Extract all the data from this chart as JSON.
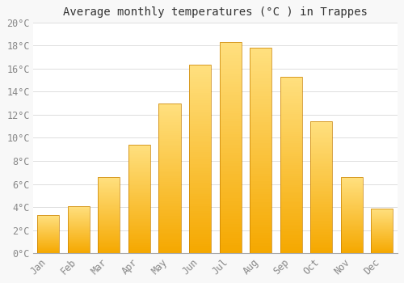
{
  "months": [
    "Jan",
    "Feb",
    "Mar",
    "Apr",
    "May",
    "Jun",
    "Jul",
    "Aug",
    "Sep",
    "Oct",
    "Nov",
    "Dec"
  ],
  "temperatures": [
    3.3,
    4.1,
    6.6,
    9.4,
    13.0,
    16.3,
    18.3,
    17.8,
    15.3,
    11.4,
    6.6,
    3.9
  ],
  "title": "Average monthly temperatures (°C ) in Trappes",
  "bar_color_bottom": "#F5A800",
  "bar_color_top": "#FFE080",
  "bar_edge_color": "#C88000",
  "ylim": [
    0,
    20
  ],
  "ytick_step": 2,
  "background_color": "#f8f8f8",
  "plot_bg_color": "#ffffff",
  "grid_color": "#dddddd",
  "title_fontsize": 10,
  "tick_fontsize": 8.5,
  "tick_color": "#888888",
  "bar_width": 0.72
}
